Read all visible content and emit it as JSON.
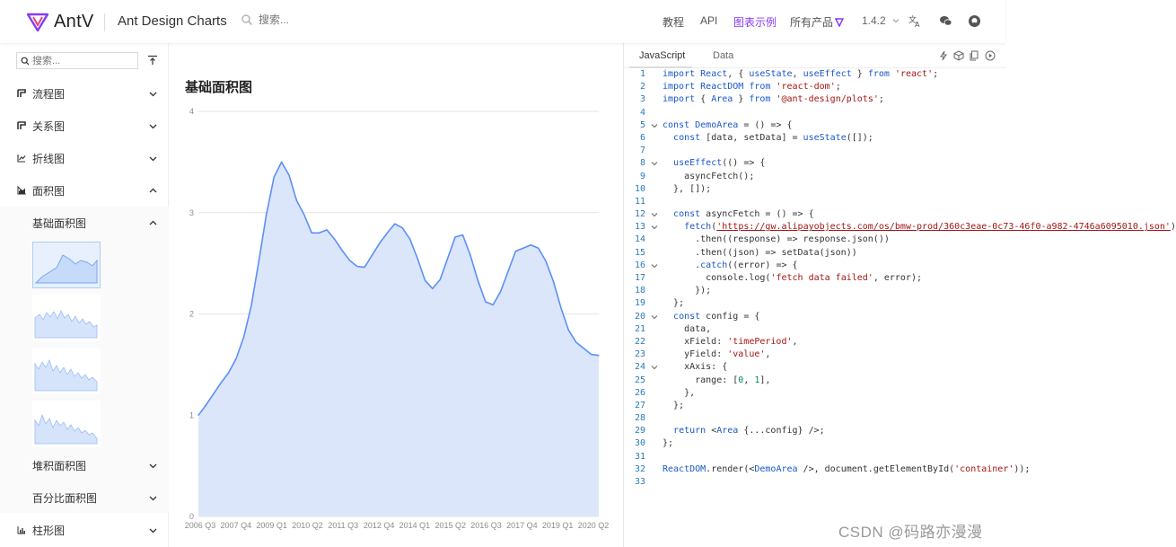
{
  "header": {
    "logo_text": "AntV",
    "site_name": "Ant Design Charts",
    "search_placeholder": "搜索...",
    "nav": [
      "教程",
      "API",
      "图表示例",
      "所有产品"
    ],
    "version": "1.4.2"
  },
  "sidebar": {
    "search_placeholder": "搜索...",
    "items_top": [
      {
        "label": "流程图"
      },
      {
        "label": "关系图"
      },
      {
        "label": "折线图"
      },
      {
        "label": "面积图"
      }
    ],
    "sub_items": [
      {
        "label": "基础面积图"
      },
      {
        "label": "堆积面积图"
      },
      {
        "label": "百分比面积图"
      }
    ],
    "items_bottom": [
      {
        "label": "柱形图"
      }
    ]
  },
  "main": {
    "title": "基础面积图"
  },
  "chart_data": {
    "type": "area",
    "title": "",
    "xlabel": "",
    "ylabel": "",
    "ylim": [
      0,
      4
    ],
    "yticks": [
      "0",
      "1",
      "2",
      "3",
      "4"
    ],
    "x_tick_labels": [
      "2006 Q3",
      "2007 Q4",
      "2009 Q1",
      "2010 Q2",
      "2011 Q3",
      "2012 Q4",
      "2014 Q1",
      "2015 Q2",
      "2016 Q3",
      "2017 Q4",
      "2019 Q1",
      "2020 Q2"
    ],
    "values": [
      1.0,
      1.1,
      1.21,
      1.32,
      1.42,
      1.56,
      1.77,
      2.08,
      2.52,
      2.98,
      3.35,
      3.5,
      3.37,
      3.12,
      2.98,
      2.8,
      2.8,
      2.83,
      2.74,
      2.63,
      2.53,
      2.47,
      2.46,
      2.58,
      2.7,
      2.8,
      2.89,
      2.85,
      2.74,
      2.55,
      2.33,
      2.25,
      2.34,
      2.55,
      2.76,
      2.78,
      2.58,
      2.33,
      2.12,
      2.09,
      2.22,
      2.42,
      2.62,
      2.65,
      2.68,
      2.65,
      2.52,
      2.32,
      2.06,
      1.84,
      1.72,
      1.66,
      1.6,
      1.59
    ],
    "color": "#5b8ff9",
    "fill": "#dce6fb"
  },
  "code": {
    "tabs": [
      "JavaScript",
      "Data"
    ],
    "lines": [
      "import React, { useState, useEffect } from 'react';",
      "import ReactDOM from 'react-dom';",
      "import { Area } from '@ant-design/plots';",
      "",
      "const DemoArea = () => {",
      "  const [data, setData] = useState([]);",
      "",
      "  useEffect(() => {",
      "    asyncFetch();",
      "  }, []);",
      "",
      "  const asyncFetch = () => {",
      "    fetch('https://gw.alipayobjects.com/os/bmw-prod/360c3eae-0c73-46f0-a982-4746a6095010.json')",
      "      .then((response) => response.json())",
      "      .then((json) => setData(json))",
      "      .catch((error) => {",
      "        console.log('fetch data failed', error);",
      "      });",
      "  };",
      "  const config = {",
      "    data,",
      "    xField: 'timePeriod',",
      "    yField: 'value',",
      "    xAxis: {",
      "      range: [0, 1],",
      "    },",
      "  };",
      "",
      "  return <Area {...config} />;",
      "};",
      "",
      "ReactDOM.render(<DemoArea />, document.getElementById('container'));",
      ""
    ]
  },
  "watermark": "CSDN @码路亦漫漫",
  "colors": {
    "accent": "#873bf4",
    "code_keyword": "#1a57c7",
    "code_string": "#a31515",
    "line_number": "#2b7bb9"
  }
}
